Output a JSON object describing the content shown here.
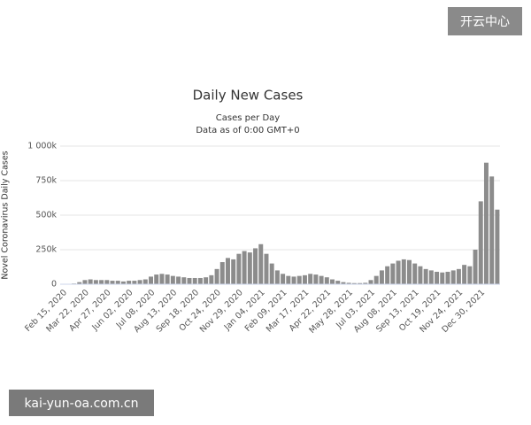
{
  "chart_data": {
    "type": "bar",
    "title": "Daily New Cases",
    "subtitle": [
      "Cases per Day",
      "Data as of 0:00 GMT+0"
    ],
    "ylabel": "Novel Coronavirus Daily Cases",
    "color": "#8c8c8c",
    "grid": true,
    "ylim": [
      0,
      1000000
    ],
    "yticks": [
      0,
      {
        "value": 250000,
        "label": "250k"
      },
      {
        "value": 500000,
        "label": "500k"
      },
      {
        "value": 750000,
        "label": "750k"
      },
      {
        "value": 1000000,
        "label": "1 000k"
      }
    ],
    "categories": [
      "Feb 15, 2020",
      null,
      null,
      null,
      "Mar 22, 2020",
      null,
      null,
      null,
      "Apr 27, 2020",
      null,
      null,
      null,
      "Jun 02, 2020",
      null,
      null,
      null,
      "Jul 08, 2020",
      null,
      null,
      null,
      "Aug 13, 2020",
      null,
      null,
      null,
      "Sep 18, 2020",
      null,
      null,
      null,
      "Oct 24, 2020",
      null,
      null,
      null,
      "Nov 29, 2020",
      null,
      null,
      null,
      "Jan 04, 2021",
      null,
      null,
      null,
      "Feb 09, 2021",
      null,
      null,
      null,
      "Mar 17, 2021",
      null,
      null,
      null,
      "Apr 22, 2021",
      null,
      null,
      null,
      "May 28, 2021",
      null,
      null,
      null,
      "Jul 03, 2021",
      null,
      null,
      null,
      "Aug 08, 2021",
      null,
      null,
      null,
      "Sep 13, 2021",
      null,
      null,
      null,
      "Oct 19, 2021",
      null,
      null,
      null,
      "Nov 24, 2021",
      null,
      null,
      null,
      "Dec 30, 2021",
      null,
      null,
      null
    ],
    "values": [
      2000,
      2000,
      5000,
      15000,
      30000,
      35000,
      30000,
      30000,
      30000,
      25000,
      25000,
      20000,
      25000,
      25000,
      30000,
      35000,
      55000,
      70000,
      75000,
      70000,
      60000,
      55000,
      50000,
      45000,
      45000,
      45000,
      50000,
      65000,
      110000,
      160000,
      190000,
      180000,
      220000,
      240000,
      230000,
      260000,
      290000,
      220000,
      150000,
      100000,
      75000,
      60000,
      55000,
      60000,
      65000,
      75000,
      70000,
      60000,
      50000,
      35000,
      25000,
      15000,
      10000,
      8000,
      8000,
      10000,
      30000,
      60000,
      100000,
      130000,
      150000,
      170000,
      180000,
      175000,
      150000,
      130000,
      110000,
      100000,
      90000,
      85000,
      90000,
      100000,
      110000,
      140000,
      130000,
      250000,
      600000,
      880000,
      780000,
      540000
    ]
  },
  "watermarks": [
    "开云中心",
    "kai-yun-oa.com.cn"
  ]
}
